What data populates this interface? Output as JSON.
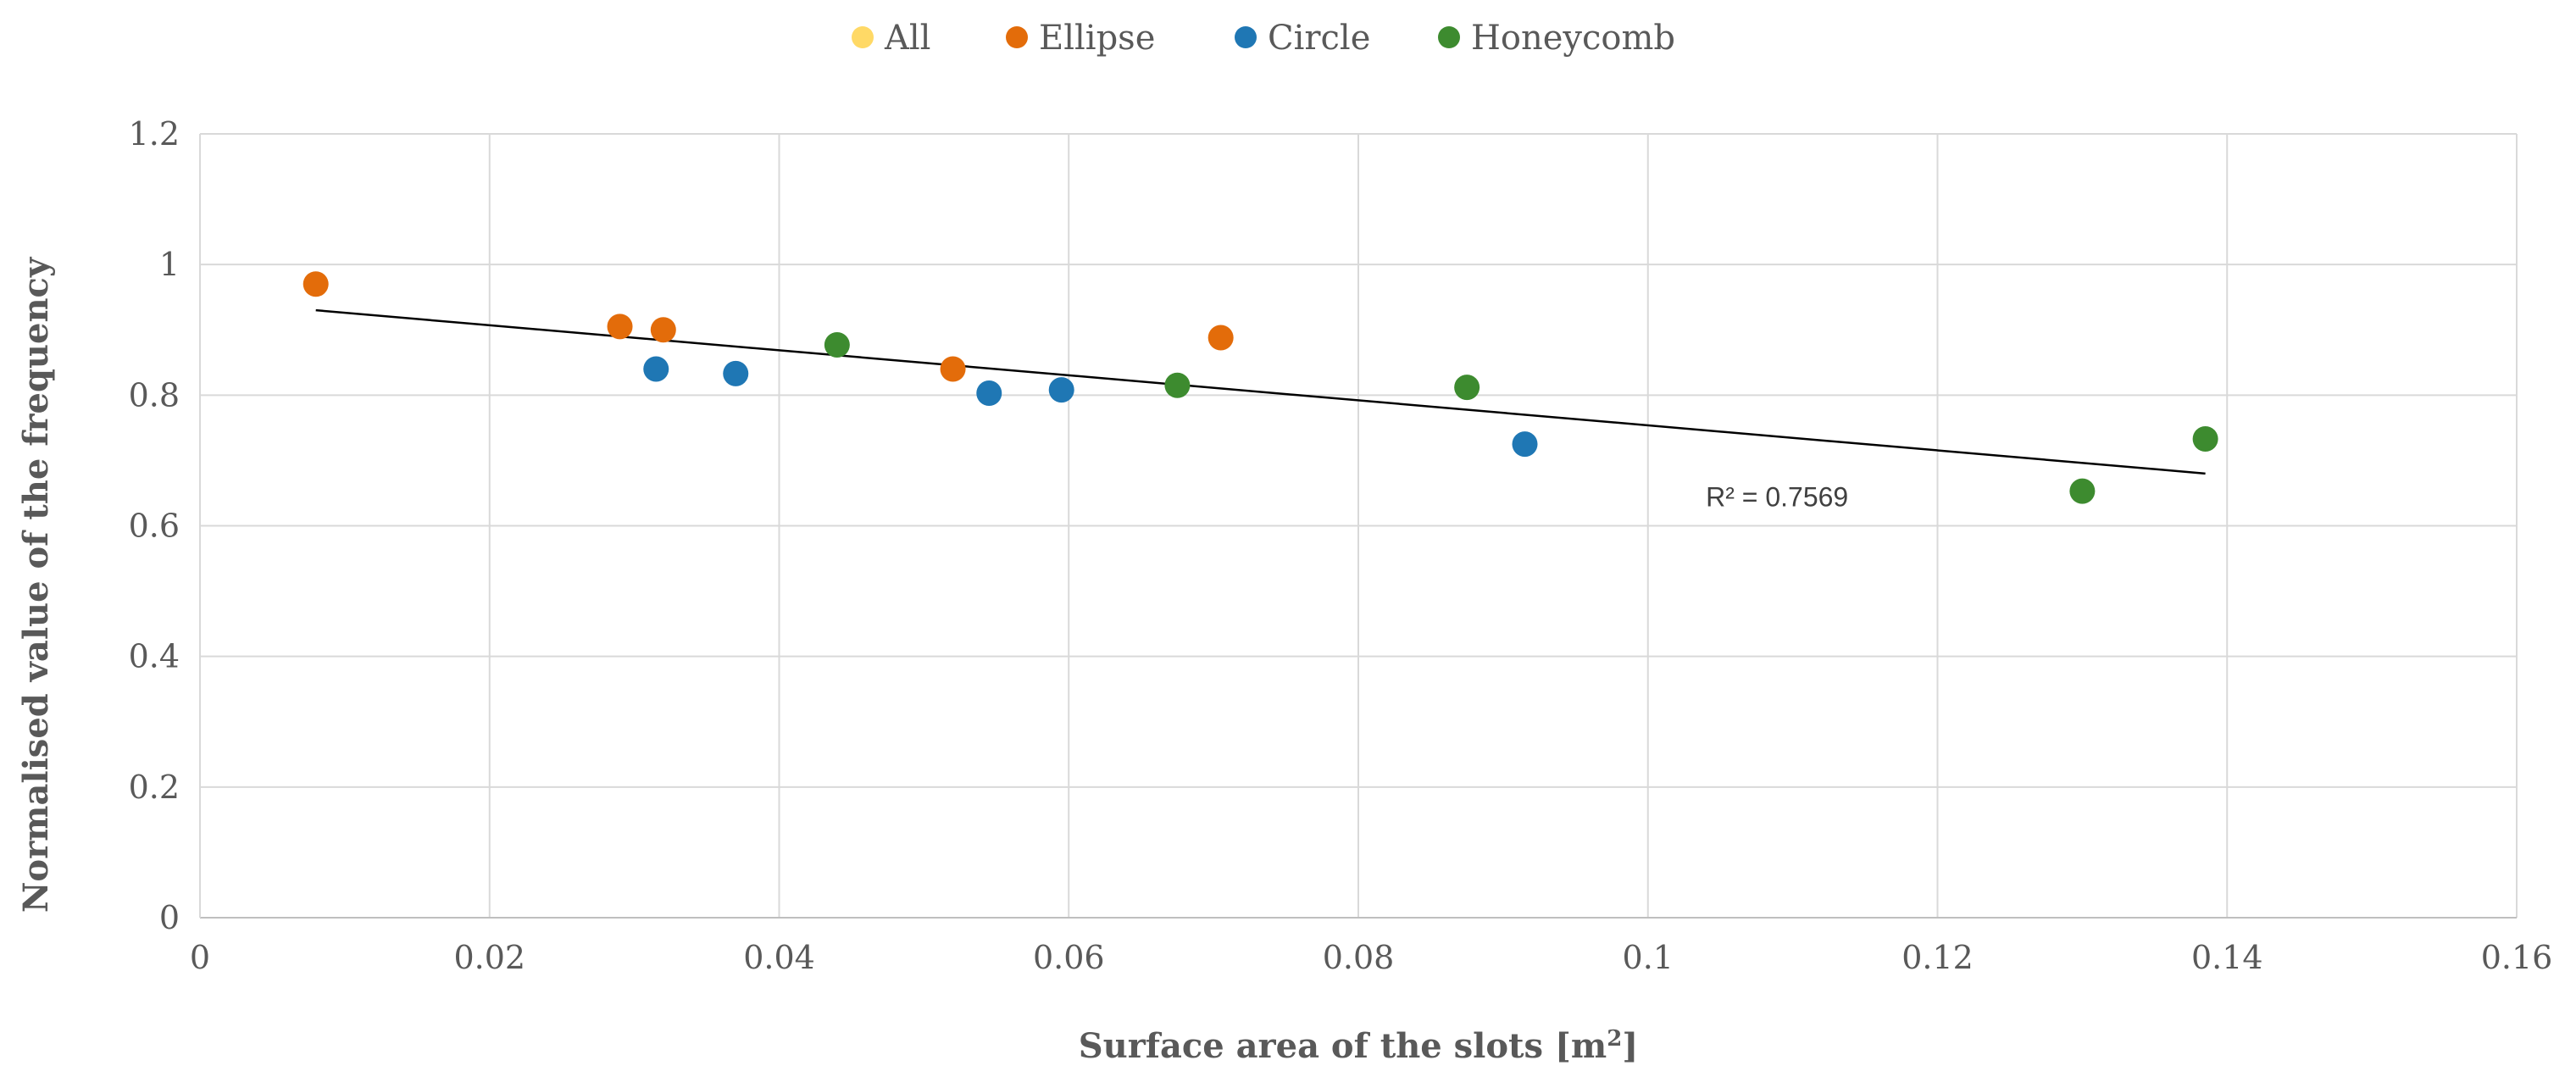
{
  "chart_data": {
    "type": "scatter",
    "title": "",
    "xlabel": "Surface area of the slots [m",
    "xlabel_sup": "2",
    "xlabel_tail": "]",
    "ylabel": "Normalised value of the frequency",
    "xlim": [
      0,
      0.16
    ],
    "ylim": [
      0,
      1.2
    ],
    "x_ticks": [
      0,
      0.02,
      0.04,
      0.06,
      0.08,
      0.1,
      0.12,
      0.14,
      0.16
    ],
    "x_tick_labels": [
      "0",
      "0.02",
      "0.04",
      "0.06",
      "0.08",
      "0.1",
      "0.12",
      "0.14",
      "0.16"
    ],
    "y_ticks": [
      0,
      0.2,
      0.4,
      0.6,
      0.8,
      1,
      1.2
    ],
    "y_tick_labels": [
      "0",
      "0.2",
      "0.4",
      "0.6",
      "0.8",
      "1",
      "1.2"
    ],
    "grid": true,
    "legend_position": "top",
    "series": [
      {
        "name": "All",
        "color": "#FFD966",
        "points": []
      },
      {
        "name": "Ellipse",
        "color": "#E36C0A",
        "points": [
          [
            0.008,
            0.97
          ],
          [
            0.029,
            0.905
          ],
          [
            0.032,
            0.9
          ],
          [
            0.052,
            0.84
          ],
          [
            0.0705,
            0.888
          ]
        ]
      },
      {
        "name": "Circle",
        "color": "#1F77B4",
        "points": [
          [
            0.0315,
            0.84
          ],
          [
            0.037,
            0.833
          ],
          [
            0.0545,
            0.803
          ],
          [
            0.0595,
            0.808
          ],
          [
            0.0915,
            0.725
          ]
        ]
      },
      {
        "name": "Honeycomb",
        "color": "#3D8B2F",
        "points": [
          [
            0.044,
            0.877
          ],
          [
            0.0675,
            0.815
          ],
          [
            0.0875,
            0.812
          ],
          [
            0.13,
            0.653
          ],
          [
            0.1385,
            0.733
          ]
        ]
      }
    ],
    "trendline": {
      "type": "linear",
      "x_start": 0.008,
      "y_start": 0.93,
      "x_end": 0.1385,
      "y_end": 0.68,
      "color": "#000000",
      "label": "R² = 0.7569",
      "label_x": 0.104,
      "label_y": 0.63
    }
  }
}
